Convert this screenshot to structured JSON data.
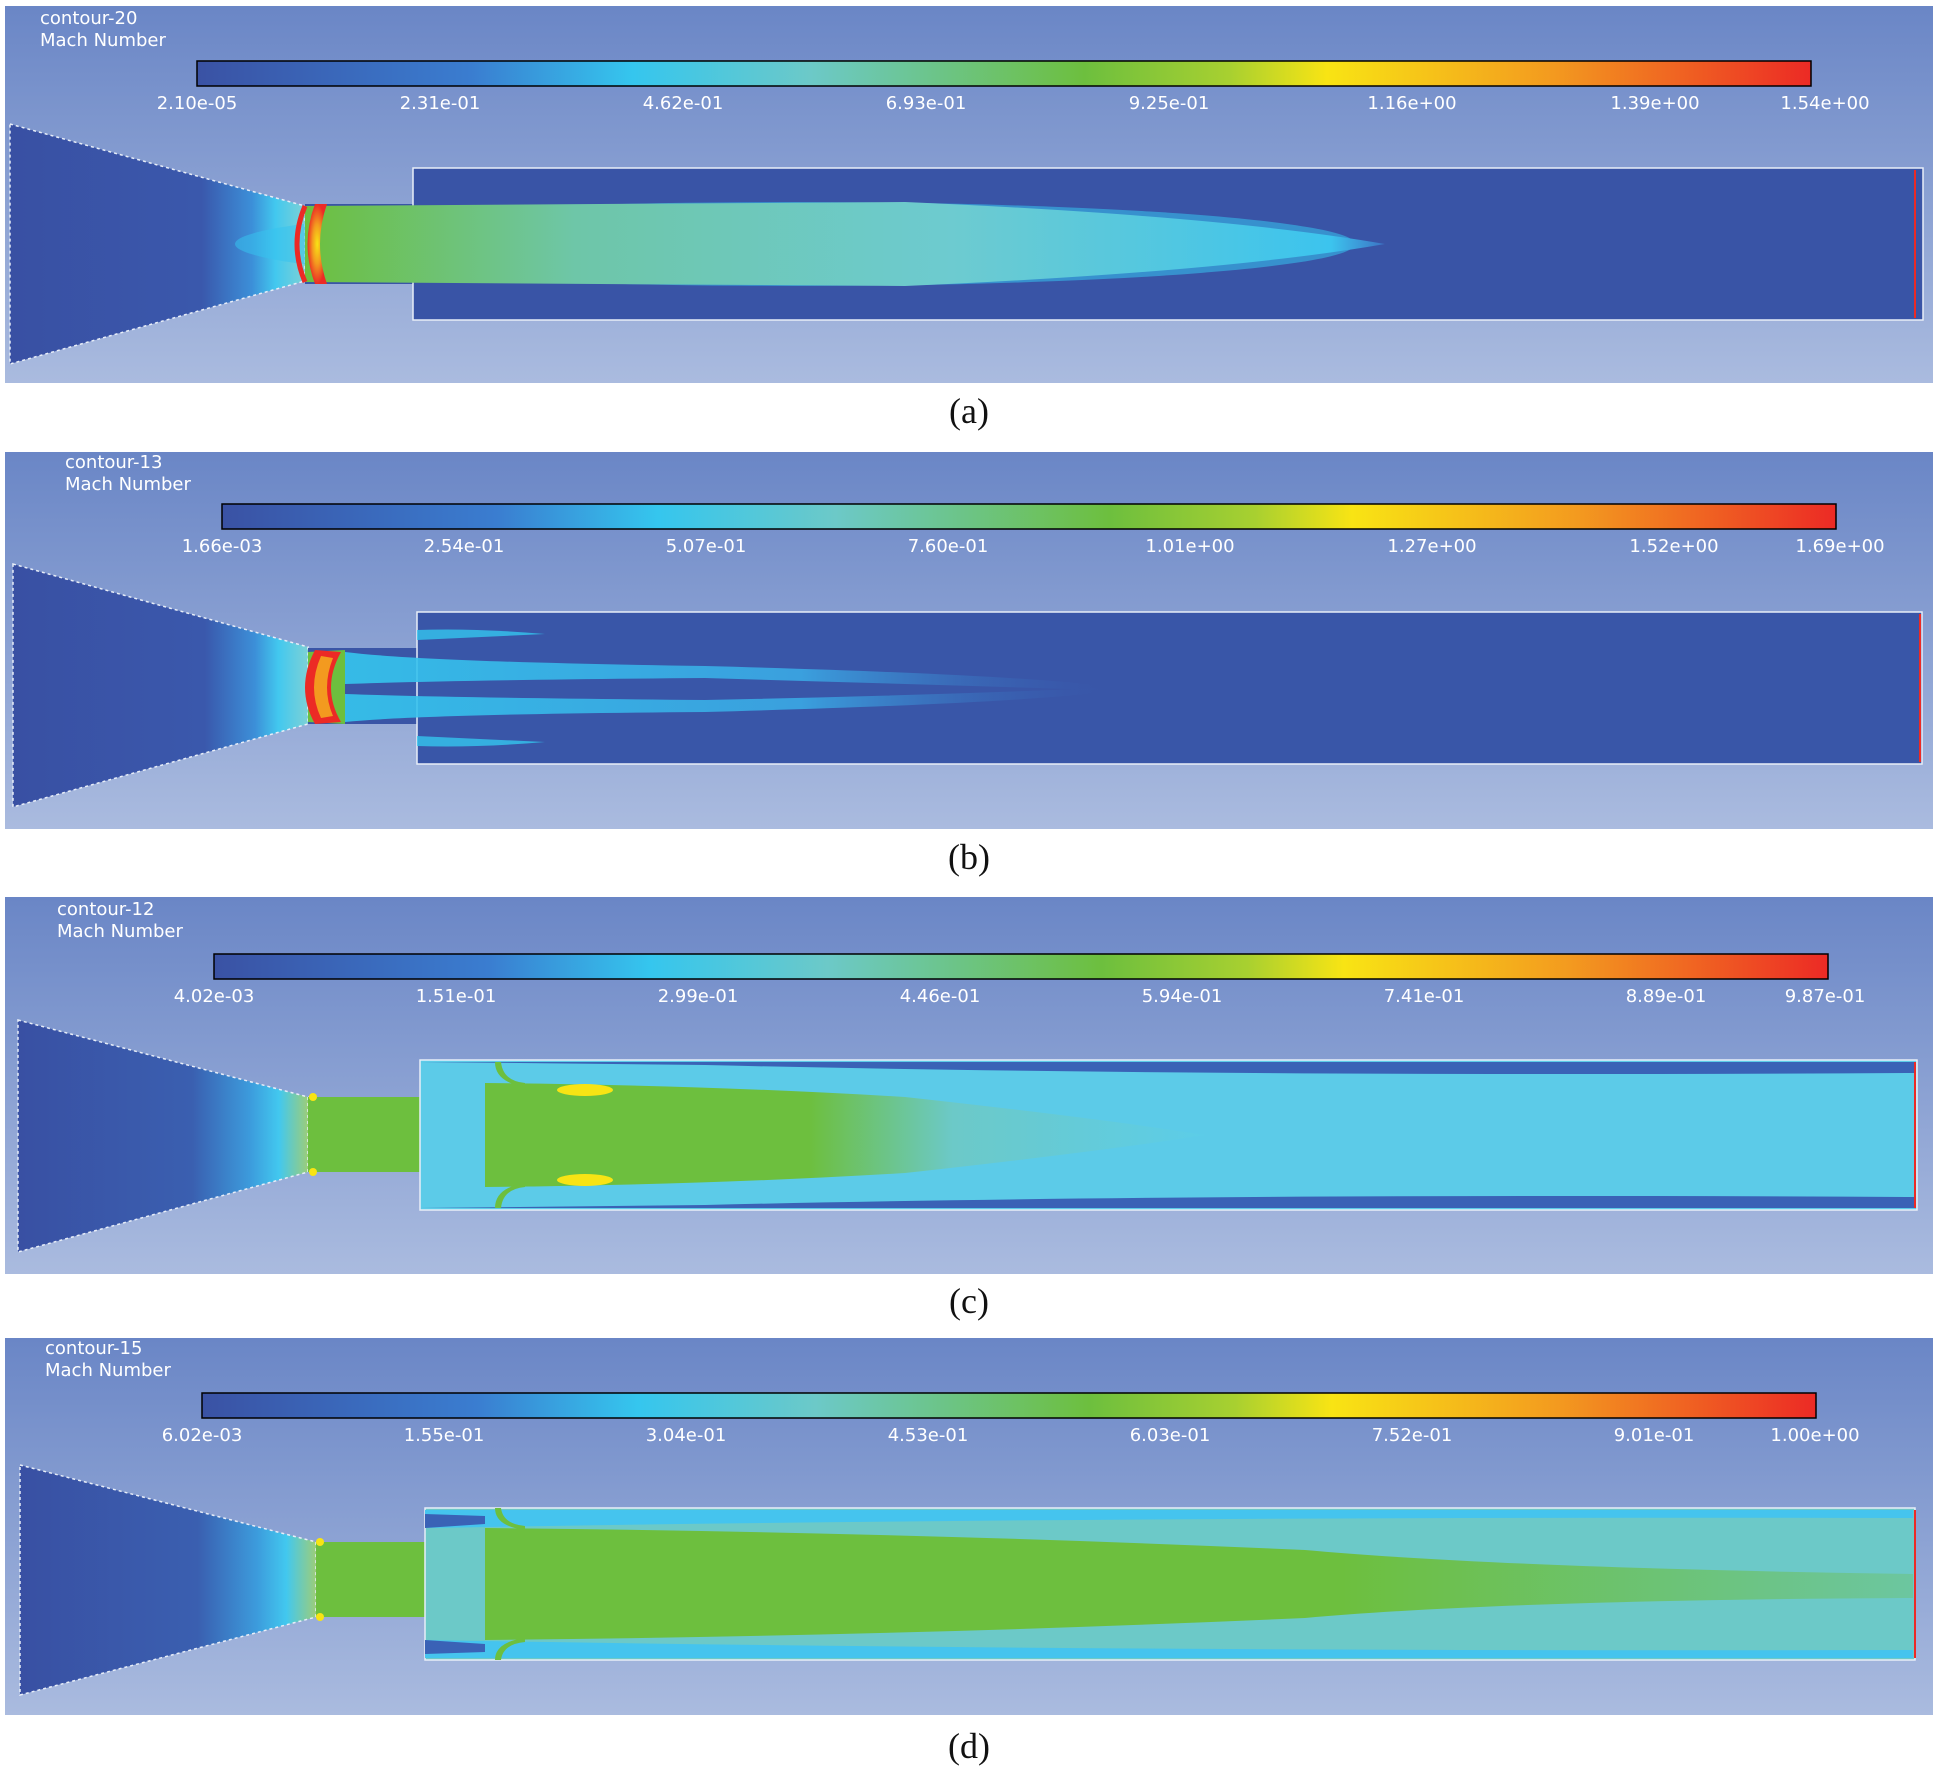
{
  "figure": {
    "panels": [
      {
        "caption": "(a)",
        "title": "contour-20",
        "variable": "Mach Number",
        "ticks": [
          "2.10e-05",
          "2.31e-01",
          "4.62e-01",
          "6.93e-01",
          "9.25e-01",
          "1.16e+00",
          "1.39e+00",
          "1.54e+00"
        ]
      },
      {
        "caption": "(b)",
        "title": "contour-13",
        "variable": "Mach Number",
        "ticks": [
          "1.66e-03",
          "2.54e-01",
          "5.07e-01",
          "7.60e-01",
          "1.01e+00",
          "1.27e+00",
          "1.52e+00",
          "1.69e+00"
        ]
      },
      {
        "caption": "(c)",
        "title": "contour-12",
        "variable": "Mach Number",
        "ticks": [
          "4.02e-03",
          "1.51e-01",
          "2.99e-01",
          "4.46e-01",
          "5.94e-01",
          "7.41e-01",
          "8.89e-01",
          "9.87e-01"
        ]
      },
      {
        "caption": "(d)",
        "title": "contour-15",
        "variable": "Mach Number",
        "ticks": [
          "6.02e-03",
          "1.55e-01",
          "3.04e-01",
          "4.53e-01",
          "6.03e-01",
          "7.52e-01",
          "9.01e-01",
          "1.00e+00"
        ]
      }
    ],
    "colors": {
      "background_top": "#6f8ac8",
      "background_bottom": "#a8b8de",
      "low": "#3a55a6",
      "cyan": "#35c4ee",
      "green": "#6cbf3c",
      "yellow": "#f7e714",
      "red": "#ee2b24"
    }
  }
}
